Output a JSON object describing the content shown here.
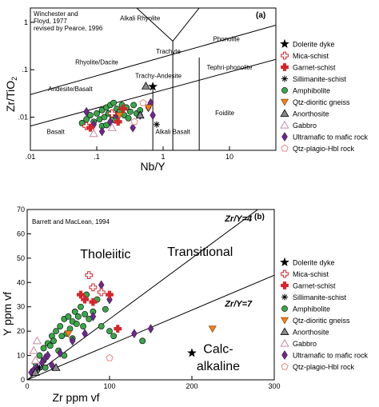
{
  "colors": {
    "amphibolite": "#3aa64a",
    "ultramafic": "#6a2a86",
    "qtz_dioritic": "#f07f1f",
    "mica_schist": "#d6262b",
    "garnet_schist": "#d6262b",
    "anorthosite": "#8a8a8a",
    "gabbro": "#c98aa6",
    "qtz_plagio": "#e68a8a",
    "dolerite": "#000000"
  },
  "legend_entries": [
    {
      "key": "dolerite",
      "label": "Dolerite dyke",
      "marker": "star"
    },
    {
      "key": "mica_schist",
      "label": "Mica-schist",
      "marker": "cross-open"
    },
    {
      "key": "garnet_schist",
      "label": "Garnet-schist",
      "marker": "cross-filled"
    },
    {
      "key": "sillimanite",
      "label": "Sillimanite-schist",
      "marker": "asterisk"
    },
    {
      "key": "amphibolite",
      "label": "Amphibolite",
      "marker": "circle"
    },
    {
      "key": "qtz_dioritic",
      "label": "Qtz-dioritic gneiss",
      "marker": "triangle-down"
    },
    {
      "key": "anorthosite",
      "label": "Anorthosite",
      "marker": "triangle-up-filled"
    },
    {
      "key": "gabbro",
      "label": "Gabbro",
      "marker": "triangle-up-open"
    },
    {
      "key": "ultramafic",
      "label": "Ultramafic to mafic rock",
      "marker": "diamond"
    },
    {
      "key": "qtz_plagio",
      "label": "Qtz-plagio-Hbl rock",
      "marker": "pentagon"
    }
  ],
  "chart_data": [
    {
      "type": "scatter",
      "panel_label": "(a)",
      "source_note": [
        "Winchester and",
        "Floyd, 1977",
        "revised by Pearce, 1996"
      ],
      "xlabel": "Nb/Y",
      "ylabel": "Zr/TiO",
      "ylabel_sub": "2",
      "x_scale": "log",
      "y_scale": "log",
      "xlim": [
        0.01,
        50
      ],
      "ylim": [
        0.002,
        2
      ],
      "x_ticks": [
        {
          "v": 0.01,
          "label": ".01"
        },
        {
          "v": 0.1,
          "label": ".1"
        },
        {
          "v": 1,
          "label": "1"
        },
        {
          "v": 10,
          "label": "10"
        }
      ],
      "y_ticks": [
        {
          "v": 0.01,
          "label": ".01"
        },
        {
          "v": 0.1,
          "label": ".1"
        },
        {
          "v": 1,
          "label": "1"
        }
      ],
      "field_labels": [
        {
          "text": "Alkali Rhyolite",
          "x": 0.45,
          "y": 1.1
        },
        {
          "text": "Phonolite",
          "x": 9,
          "y": 0.4
        },
        {
          "text": "Trachyte",
          "x": 1.2,
          "y": 0.22
        },
        {
          "text": "Rhyolite/Dacite",
          "x": 0.1,
          "y": 0.13
        },
        {
          "text": "Tephri-phonolite",
          "x": 10,
          "y": 0.1
        },
        {
          "text": "Trachy-Andesite",
          "x": 0.85,
          "y": 0.067
        },
        {
          "text": "Andesite/Basalt",
          "x": 0.04,
          "y": 0.035
        },
        {
          "text": "Foidite",
          "x": 8.5,
          "y": 0.011
        },
        {
          "text": "Basalt",
          "x": 0.024,
          "y": 0.0044
        },
        {
          "text": "Alkali Basalt",
          "x": 1.4,
          "y": 0.0044
        }
      ],
      "boundaries": [
        [
          [
            0.01,
            0.03
          ],
          [
            50,
            0.87
          ]
        ],
        [
          [
            0.01,
            0.0065
          ],
          [
            50,
            0.165
          ]
        ],
        [
          [
            0.4,
            2
          ],
          [
            1.4,
            0.4
          ]
        ],
        [
          [
            1.4,
            0.4
          ],
          [
            3.5,
            2
          ]
        ],
        [
          [
            0.7,
            0.04
          ],
          [
            0.7,
            0.002
          ]
        ],
        [
          [
            1.4,
            0.4
          ],
          [
            1.4,
            0.002
          ]
        ],
        [
          [
            3.5,
            0.18
          ],
          [
            3.5,
            0.002
          ]
        ]
      ],
      "series": [
        {
          "key": "amphibolite",
          "points": [
            [
              0.06,
              0.0075
            ],
            [
              0.07,
              0.009
            ],
            [
              0.08,
              0.011
            ],
            [
              0.09,
              0.008
            ],
            [
              0.1,
              0.012
            ],
            [
              0.11,
              0.009
            ],
            [
              0.12,
              0.014
            ],
            [
              0.13,
              0.01
            ],
            [
              0.14,
              0.016
            ],
            [
              0.15,
              0.012
            ],
            [
              0.16,
              0.018
            ],
            [
              0.17,
              0.011
            ],
            [
              0.18,
              0.02
            ],
            [
              0.2,
              0.015
            ],
            [
              0.22,
              0.013
            ],
            [
              0.24,
              0.018
            ],
            [
              0.26,
              0.011
            ],
            [
              0.28,
              0.016
            ],
            [
              0.32,
              0.013
            ],
            [
              0.36,
              0.018
            ],
            [
              0.4,
              0.012
            ],
            [
              0.45,
              0.014
            ],
            [
              0.12,
              0.0065
            ],
            [
              0.14,
              0.0068
            ],
            [
              0.3,
              0.0095
            ],
            [
              0.19,
              0.0085
            ]
          ]
        },
        {
          "key": "ultramafic",
          "points": [
            [
              0.07,
              0.013
            ],
            [
              0.09,
              0.007
            ],
            [
              0.12,
              0.005
            ],
            [
              0.16,
              0.008
            ],
            [
              0.2,
              0.011
            ],
            [
              0.35,
              0.006
            ],
            [
              0.45,
              0.011
            ],
            [
              0.6,
              0.016
            ],
            [
              0.65,
              0.02
            ],
            [
              0.7,
              0.011
            ]
          ]
        },
        {
          "key": "qtz_dioritic",
          "points": [
            [
              0.6,
              0.016
            ],
            [
              0.22,
              0.011
            ]
          ]
        },
        {
          "key": "mica_schist",
          "points": [
            [
              0.07,
              0.0065
            ],
            [
              0.17,
              0.012
            ]
          ]
        },
        {
          "key": "garnet_schist",
          "points": [
            [
              0.08,
              0.006
            ],
            [
              0.21,
              0.008
            ],
            [
              0.25,
              0.015
            ]
          ]
        },
        {
          "key": "anorthosite",
          "points": [
            [
              0.55,
              0.045
            ],
            [
              0.45,
              0.011
            ]
          ]
        },
        {
          "key": "gabbro",
          "points": [
            [
              0.09,
              0.0045
            ],
            [
              0.17,
              0.006
            ]
          ]
        },
        {
          "key": "qtz_plagio",
          "points": [
            [
              0.5,
              0.02
            ],
            [
              0.37,
              0.008
            ]
          ]
        },
        {
          "key": "sillimanite",
          "points": [
            [
              0.8,
              0.007
            ]
          ]
        },
        {
          "key": "dolerite",
          "points": [
            [
              0.7,
              0.044
            ]
          ]
        }
      ]
    },
    {
      "type": "scatter",
      "panel_label": "(b)",
      "source_note": [
        "Barrett and MacLean, 1994"
      ],
      "xlabel": "Zr ppm vf",
      "ylabel": "Y ppm vf",
      "xlim": [
        0,
        300
      ],
      "ylim": [
        0,
        70
      ],
      "x_ticks": [
        {
          "v": 0,
          "label": "0"
        },
        {
          "v": 100,
          "label": "100"
        },
        {
          "v": 200,
          "label": "200"
        },
        {
          "v": 300,
          "label": "300"
        }
      ],
      "y_ticks": [
        {
          "v": 0,
          "label": "0"
        },
        {
          "v": 10,
          "label": "10"
        },
        {
          "v": 20,
          "label": "20"
        },
        {
          "v": 30,
          "label": "30"
        },
        {
          "v": 40,
          "label": "40"
        },
        {
          "v": 50,
          "label": "50"
        },
        {
          "v": 60,
          "label": "60"
        },
        {
          "v": 70,
          "label": "70"
        }
      ],
      "lines": [
        {
          "label": "Zr/Y=4",
          "from": [
            0,
            0
          ],
          "to": [
            300,
            75
          ]
        },
        {
          "label": "Zr/Y=7",
          "from": [
            0,
            0
          ],
          "to": [
            300,
            43
          ]
        }
      ],
      "line_labels": [
        {
          "text": "Zr/Y=4",
          "x": 240,
          "y": 65
        },
        {
          "text": "Zr/Y=7",
          "x": 240,
          "y": 30
        }
      ],
      "field_labels": [
        {
          "text": "Tholeiitic",
          "x": 95,
          "y": 50
        },
        {
          "text": "Transitional",
          "x": 210,
          "y": 51
        },
        {
          "text": "Calc-",
          "x": 232,
          "y": 11
        },
        {
          "text": "alkaline",
          "x": 232,
          "y": 4
        }
      ],
      "series": [
        {
          "key": "amphibolite",
          "points": [
            [
              10,
              7
            ],
            [
              15,
              10
            ],
            [
              20,
              13
            ],
            [
              22,
              5
            ],
            [
              25,
              15
            ],
            [
              28,
              14
            ],
            [
              30,
              18
            ],
            [
              32,
              16
            ],
            [
              35,
              20
            ],
            [
              38,
              12
            ],
            [
              40,
              22
            ],
            [
              42,
              18
            ],
            [
              45,
              25
            ],
            [
              48,
              19
            ],
            [
              50,
              26
            ],
            [
              52,
              21
            ],
            [
              55,
              24
            ],
            [
              58,
              28
            ],
            [
              60,
              23
            ],
            [
              62,
              26
            ],
            [
              65,
              30
            ],
            [
              68,
              22
            ],
            [
              70,
              27
            ],
            [
              72,
              35
            ],
            [
              75,
              25
            ],
            [
              80,
              28
            ],
            [
              85,
              33
            ],
            [
              90,
              22
            ],
            [
              95,
              29
            ],
            [
              100,
              20
            ],
            [
              105,
              18
            ],
            [
              140,
              16
            ],
            [
              20,
              8
            ],
            [
              12,
              4
            ],
            [
              45,
              10
            ],
            [
              55,
              17
            ]
          ]
        },
        {
          "key": "ultramafic",
          "points": [
            [
              5,
              3
            ],
            [
              8,
              4
            ],
            [
              12,
              5
            ],
            [
              18,
              7
            ],
            [
              22,
              9
            ],
            [
              25,
              10
            ],
            [
              30,
              6
            ],
            [
              40,
              11
            ],
            [
              55,
              16
            ],
            [
              70,
              19
            ],
            [
              80,
              26
            ],
            [
              90,
              39
            ],
            [
              100,
              33
            ],
            [
              130,
              19
            ],
            [
              150,
              21
            ]
          ]
        },
        {
          "key": "mica_schist",
          "points": [
            [
              75,
              43
            ],
            [
              80,
              38
            ],
            [
              90,
              36
            ]
          ]
        },
        {
          "key": "garnet_schist",
          "points": [
            [
              65,
              35
            ],
            [
              70,
              33
            ],
            [
              80,
              32
            ],
            [
              100,
              35
            ],
            [
              110,
              21
            ]
          ]
        },
        {
          "key": "qtz_dioritic",
          "points": [
            [
              225,
              21
            ],
            [
              50,
              19
            ]
          ]
        },
        {
          "key": "anorthosite",
          "points": [
            [
              10,
              3
            ],
            [
              35,
              5
            ]
          ]
        },
        {
          "key": "gabbro",
          "points": [
            [
              12,
              16
            ],
            [
              10,
              8
            ],
            [
              8,
              12
            ]
          ]
        },
        {
          "key": "qtz_plagio",
          "points": [
            [
              100,
              9
            ]
          ]
        },
        {
          "key": "sillimanite",
          "points": [
            [
              15,
              5
            ]
          ]
        },
        {
          "key": "dolerite",
          "points": [
            [
              200,
              11
            ]
          ]
        }
      ]
    }
  ]
}
